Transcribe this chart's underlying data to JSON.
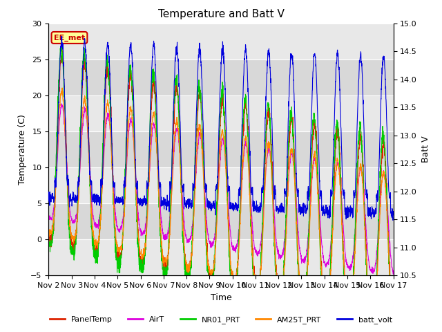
{
  "title": "Temperature and Batt V",
  "xlabel": "Time",
  "ylabel_left": "Temperature (C)",
  "ylabel_right": "Batt V",
  "ylim_left": [
    -5,
    30
  ],
  "ylim_right": [
    10.5,
    15.0
  ],
  "xtick_labels": [
    "Nov 2",
    "Nov 3",
    "Nov 4",
    "Nov 5",
    "Nov 6",
    "Nov 7",
    "Nov 8",
    "Nov 9",
    "Nov 10",
    "Nov 11",
    "Nov 12",
    "Nov 13",
    "Nov 14",
    "Nov 15",
    "Nov 16",
    "Nov 17"
  ],
  "annotation_text": "EE_met",
  "annotation_color": "#cc0000",
  "annotation_bg": "#ffff99",
  "series_colors": {
    "PanelTemp": "#dd2200",
    "AirT": "#dd00dd",
    "NR01_PRT": "#00cc00",
    "AM25T_PRT": "#ff8800",
    "batt_volt": "#0000dd"
  },
  "legend_labels": [
    "PanelTemp",
    "AirT",
    "NR01_PRT",
    "AM25T_PRT",
    "batt_volt"
  ],
  "background_color": "#ffffff",
  "plot_bg_light": "#e8e8e8",
  "plot_bg_dark": "#d8d8d8",
  "title_fontsize": 11,
  "axis_fontsize": 9,
  "tick_fontsize": 8
}
